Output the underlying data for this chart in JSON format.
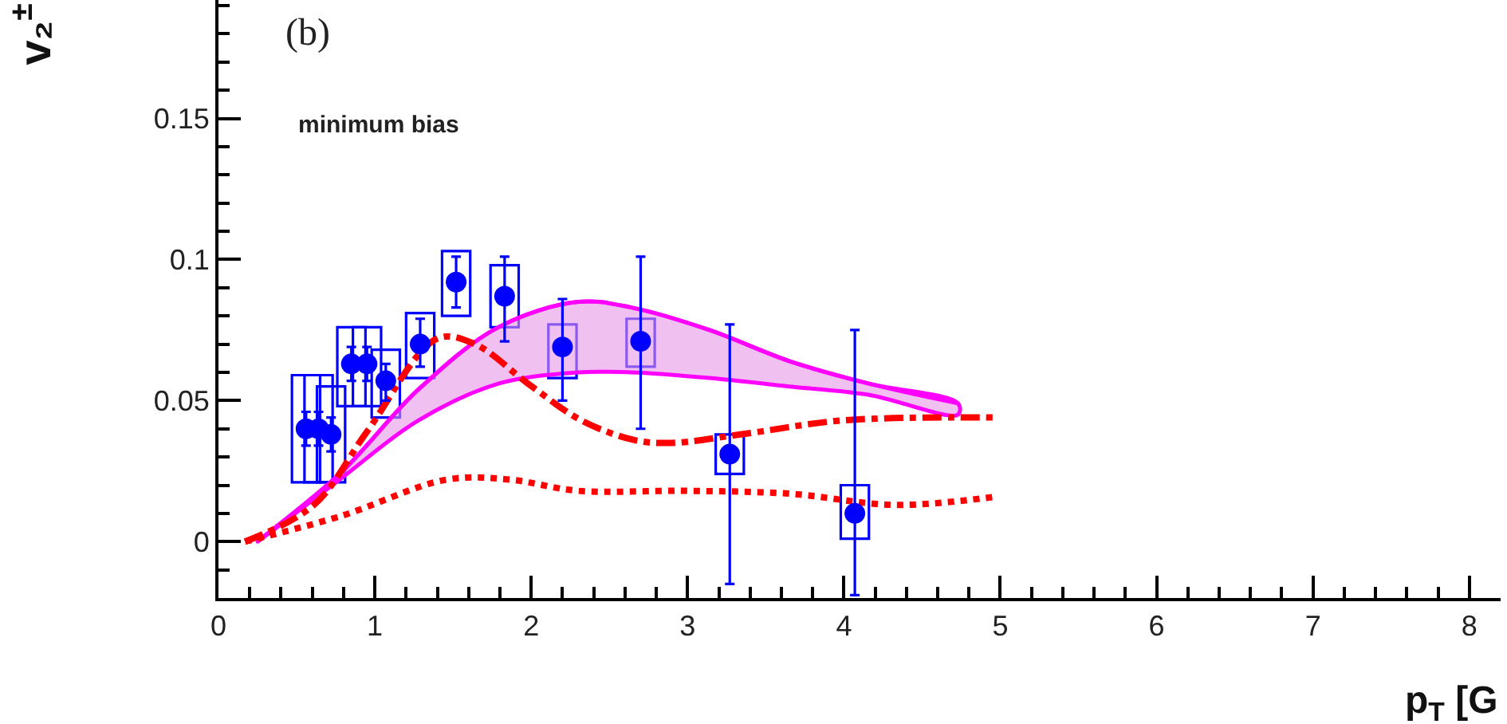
{
  "chart_data": {
    "type": "scatter",
    "ylabel": "v₂$^{±}$",
    "xlabel": "p$_{T}$ [G",
    "annotations": [
      "(b)",
      "minimum bias"
    ],
    "xlim": [
      0,
      8.2
    ],
    "ylim": [
      -0.02,
      0.192
    ],
    "xticks": [
      0,
      1,
      2,
      3,
      4,
      5,
      6,
      7,
      8
    ],
    "yticks": [
      0,
      0.05,
      0.1,
      0.15
    ],
    "series": [
      {
        "type": "line",
        "color": "#ff00ff",
        "x": [
          0.25,
          0.775,
          1.28,
          1.79,
          2.3,
          2.64,
          3.14,
          3.65,
          4.16,
          4.73
        ],
        "values": [
          0.0,
          0.024,
          0.054,
          0.076,
          0.085,
          0.083,
          0.075,
          0.064,
          0.056,
          0.049
        ],
        "upper": [
          0.0,
          0.024,
          0.054,
          0.076,
          0.085,
          0.083,
          0.075,
          0.064,
          0.056,
          0.049
        ],
        "lower": [
          0.0,
          0.022,
          0.043,
          0.056,
          0.06,
          0.06,
          0.058,
          0.055,
          0.052,
          0.045
        ]
      },
      {
        "type": "line",
        "color": "#ff0000",
        "line_style": "dashdot",
        "x": [
          0.17,
          0.61,
          0.95,
          1.4,
          1.64,
          1.98,
          2.32,
          2.66,
          2.9,
          3.34,
          4.0,
          4.98
        ],
        "values": [
          0.0,
          0.013,
          0.039,
          0.072,
          0.07,
          0.056,
          0.043,
          0.036,
          0.035,
          0.038,
          0.043,
          0.044
        ]
      },
      {
        "type": "line",
        "color": "#ff0000",
        "line_style": "dotted",
        "x": [
          0.17,
          0.78,
          1.46,
          1.86,
          2.3,
          2.98,
          3.65,
          4.33,
          4.98
        ],
        "values": [
          0.0,
          0.009,
          0.022,
          0.022,
          0.018,
          0.018,
          0.017,
          0.013,
          0.016
        ]
      },
      {
        "type": "bar",
        "color": "#0000ff",
        "x": [
          0.56,
          0.64,
          0.72,
          0.85,
          0.95,
          1.07,
          1.29,
          1.52,
          1.83,
          2.2,
          2.7,
          3.27,
          4.07
        ],
        "base": [
          0.021,
          0.021,
          0.021,
          0.048,
          0.048,
          0.044,
          0.058,
          0.08,
          0.076,
          0.058,
          0.062,
          0.024,
          0.001
        ],
        "values": [
          0.038,
          0.038,
          0.034,
          0.028,
          0.028,
          0.024,
          0.023,
          0.023,
          0.022,
          0.019,
          0.017,
          0.014,
          0.019
        ]
      },
      {
        "marker": "circle",
        "color": "#0000ff",
        "x": [
          0.56,
          0.64,
          0.72,
          0.85,
          0.95,
          1.07,
          1.29,
          1.52,
          1.83,
          2.2,
          2.7,
          3.27,
          4.07
        ],
        "values": [
          0.04,
          0.04,
          0.038,
          0.063,
          0.063,
          0.057,
          0.07,
          0.092,
          0.087,
          0.069,
          0.071,
          0.031,
          0.01
        ],
        "errors": [
          [
            0.034,
            0.046
          ],
          [
            0.034,
            0.046
          ],
          [
            0.032,
            0.044
          ],
          [
            0.057,
            0.069
          ],
          [
            0.057,
            0.069
          ],
          [
            0.05,
            0.063
          ],
          [
            0.062,
            0.079
          ],
          [
            0.083,
            0.101
          ],
          [
            0.071,
            0.101
          ],
          [
            0.05,
            0.086
          ],
          [
            0.04,
            0.101
          ],
          [
            -0.015,
            0.077
          ],
          [
            -0.019,
            0.075
          ]
        ]
      }
    ]
  }
}
